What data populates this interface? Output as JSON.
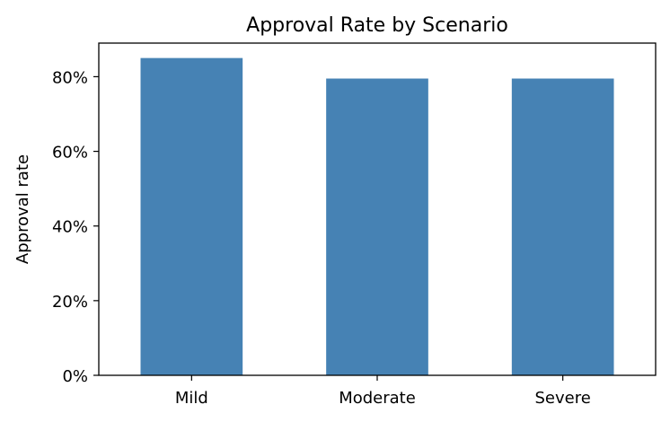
{
  "chart_data": {
    "type": "bar",
    "title": "Approval Rate by Scenario",
    "xlabel": "",
    "ylabel": "Approval rate",
    "categories": [
      "Mild",
      "Moderate",
      "Severe"
    ],
    "values": [
      0.85,
      0.795,
      0.795
    ],
    "ylim": [
      0,
      0.89
    ],
    "yticks": [
      0,
      0.2,
      0.4,
      0.6,
      0.8
    ],
    "ytick_labels": [
      "0%",
      "20%",
      "40%",
      "60%",
      "80%"
    ],
    "bar_color": "#4682b4",
    "grid": false,
    "legend": "none"
  }
}
